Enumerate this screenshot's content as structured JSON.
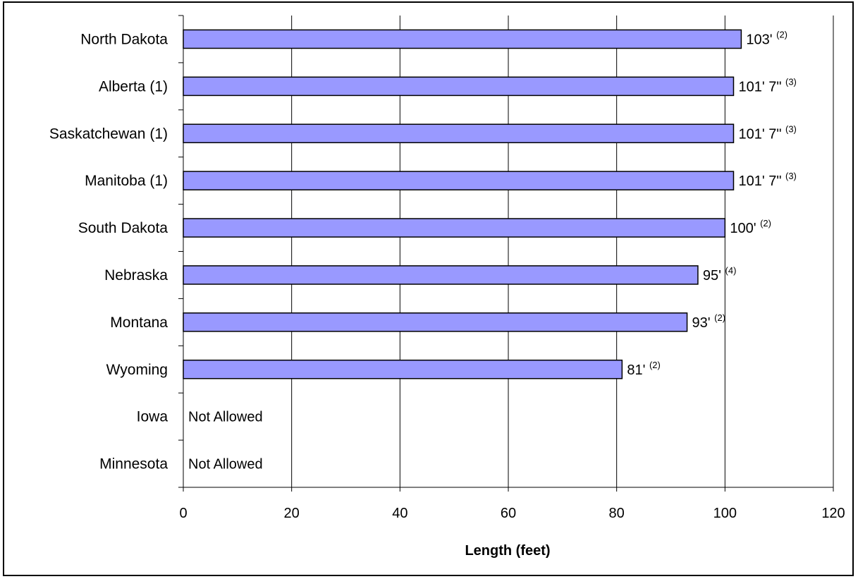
{
  "chart_data": {
    "type": "bar",
    "orientation": "horizontal",
    "title": "",
    "xlabel": "Length (feet)",
    "ylabel": "",
    "xlim": [
      0,
      120
    ],
    "x_ticks": [
      "0",
      "20",
      "40",
      "60",
      "80",
      "100",
      "120"
    ],
    "grid": "vertical",
    "legend": "none",
    "colors": {
      "bar_fill": "#9999ff",
      "bar_stroke": "#000000",
      "grid": "#000000"
    },
    "bars": [
      {
        "category": "North Dakota",
        "value": 103,
        "label": "103'",
        "note": "(2)"
      },
      {
        "category": "Alberta (1)",
        "value": 101.58,
        "label": "101' 7\"",
        "note": "(3)"
      },
      {
        "category": "Saskatchewan (1)",
        "value": 101.58,
        "label": "101' 7\"",
        "note": "(3)"
      },
      {
        "category": "Manitoba (1)",
        "value": 101.58,
        "label": "101' 7\"",
        "note": "(3)"
      },
      {
        "category": "South Dakota",
        "value": 100,
        "label": "100'",
        "note": "(2)"
      },
      {
        "category": "Nebraska",
        "value": 95,
        "label": "95'",
        "note": "(4)"
      },
      {
        "category": "Montana",
        "value": 93,
        "label": "93'",
        "note": "(2)"
      },
      {
        "category": "Wyoming",
        "value": 81,
        "label": "81'",
        "note": "(2)"
      },
      {
        "category": "Iowa",
        "value": null,
        "label": "Not Allowed",
        "note": ""
      },
      {
        "category": "Minnesota",
        "value": null,
        "label": "Not Allowed",
        "note": ""
      }
    ]
  }
}
